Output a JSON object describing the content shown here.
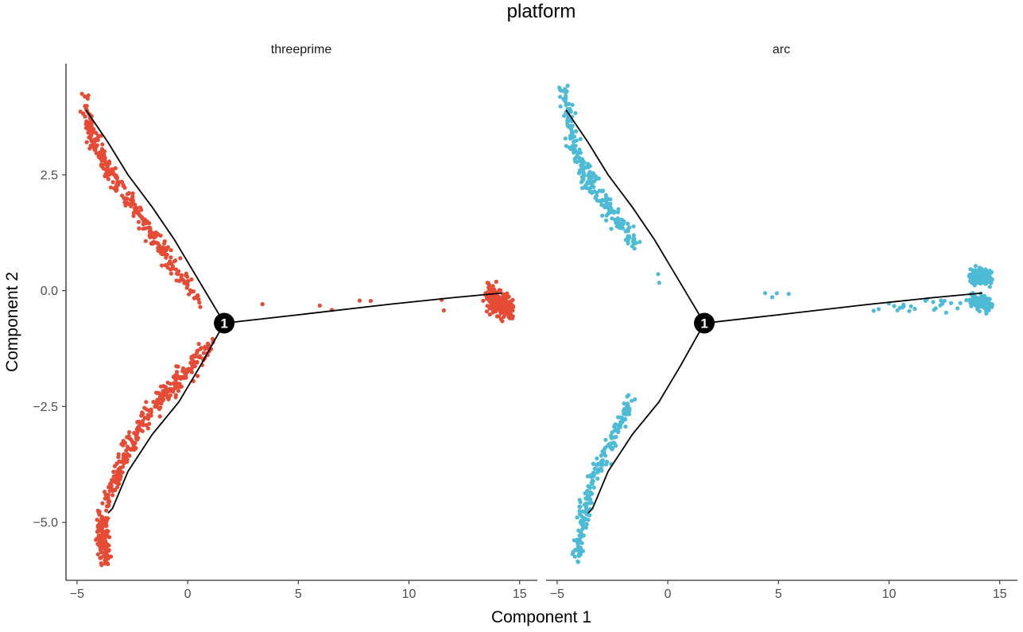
{
  "chart_data": {
    "type": "scatter",
    "title": "platform",
    "xlabel": "Component 1",
    "ylabel": "Component 2",
    "xlim": [
      -5.5,
      15.8
    ],
    "ylim": [
      -6.25,
      4.9
    ],
    "x_ticks": [
      -5,
      0,
      5,
      10,
      15
    ],
    "x_tick_labels": [
      "−5",
      "0",
      "5",
      "10",
      "15"
    ],
    "y_ticks": [
      2.5,
      0.0,
      -2.5,
      -5.0
    ],
    "y_tick_labels": [
      "2.5",
      "0.0",
      "−2.5",
      "−5.0"
    ],
    "grid": false,
    "legend": "none",
    "branch_point": {
      "label": "1",
      "x": 1.65,
      "y": -0.7
    },
    "trajectory": {
      "branch_upper": [
        [
          1.65,
          -0.7
        ],
        [
          0.4,
          0.3
        ],
        [
          -0.6,
          1.1
        ],
        [
          -1.6,
          1.8
        ],
        [
          -2.7,
          2.5
        ],
        [
          -3.6,
          3.2
        ],
        [
          -4.6,
          3.9
        ]
      ],
      "branch_right": [
        [
          1.65,
          -0.7
        ],
        [
          5.0,
          -0.52
        ],
        [
          9.0,
          -0.3
        ],
        [
          12.0,
          -0.15
        ],
        [
          14.2,
          -0.05
        ]
      ],
      "branch_lower": [
        [
          1.65,
          -0.7
        ],
        [
          0.6,
          -1.6
        ],
        [
          -0.4,
          -2.4
        ],
        [
          -1.6,
          -3.1
        ],
        [
          -2.7,
          -3.9
        ],
        [
          -3.4,
          -4.7
        ],
        [
          -3.6,
          -4.8
        ]
      ]
    },
    "panels": [
      {
        "strip_label": "threeprime",
        "color": "#E64B35",
        "clusters": [
          {
            "n": 300,
            "path": [
              [
                -4.6,
                4.0
              ],
              [
                -4.3,
                3.3
              ],
              [
                -3.6,
                2.6
              ],
              [
                -2.6,
                1.9
              ],
              [
                -1.6,
                1.2
              ],
              [
                -0.6,
                0.5
              ],
              [
                0.7,
                -0.3
              ]
            ],
            "spread": 0.12
          },
          {
            "n": 280,
            "path": [
              [
                -3.6,
                -4.6
              ],
              [
                -2.9,
                -3.6
              ],
              [
                -2.0,
                -2.8
              ],
              [
                -1.0,
                -2.2
              ],
              [
                0.0,
                -1.7
              ],
              [
                1.0,
                -1.2
              ]
            ],
            "spread": 0.12
          },
          {
            "n": 130,
            "path": [
              [
                -3.9,
                -4.9
              ],
              [
                -3.7,
                -5.8
              ]
            ],
            "spread": 0.12
          },
          {
            "n": 200,
            "path": [
              [
                13.6,
                -0.1
              ],
              [
                14.6,
                -0.45
              ]
            ],
            "spread": 0.14
          },
          {
            "n": 7,
            "path": [
              [
                2.5,
                -0.4
              ],
              [
                12.5,
                -0.25
              ]
            ],
            "spread": 0.15
          }
        ]
      },
      {
        "strip_label": "arc",
        "color": "#4DBBD5",
        "clusters": [
          {
            "n": 240,
            "path": [
              [
                -4.7,
                4.4
              ],
              [
                -4.4,
                3.4
              ],
              [
                -3.9,
                2.7
              ],
              [
                -3.3,
                2.2
              ],
              [
                -2.4,
                1.6
              ],
              [
                -1.5,
                1.0
              ]
            ],
            "spread": 0.12
          },
          {
            "n": 200,
            "path": [
              [
                -1.7,
                -2.4
              ],
              [
                -2.6,
                -3.3
              ],
              [
                -3.5,
                -4.2
              ],
              [
                -3.8,
                -4.9
              ],
              [
                -4.1,
                -5.8
              ]
            ],
            "spread": 0.12
          },
          {
            "n": 140,
            "path": [
              [
                13.7,
                0.3
              ],
              [
                14.6,
                0.3
              ]
            ],
            "spread": 0.08
          },
          {
            "n": 140,
            "path": [
              [
                13.7,
                -0.2
              ],
              [
                14.6,
                -0.3
              ]
            ],
            "spread": 0.08
          },
          {
            "n": 25,
            "path": [
              [
                9.0,
                -0.4
              ],
              [
                13.4,
                -0.25
              ]
            ],
            "spread": 0.08
          },
          {
            "n": 4,
            "path": [
              [
                4.2,
                -0.1
              ],
              [
                6.6,
                -0.1
              ]
            ],
            "spread": 0.05
          },
          {
            "n": 2,
            "path": [
              [
                -0.5,
                0.3
              ],
              [
                -0.3,
                0.3
              ]
            ],
            "spread": 0.04
          }
        ]
      }
    ]
  }
}
